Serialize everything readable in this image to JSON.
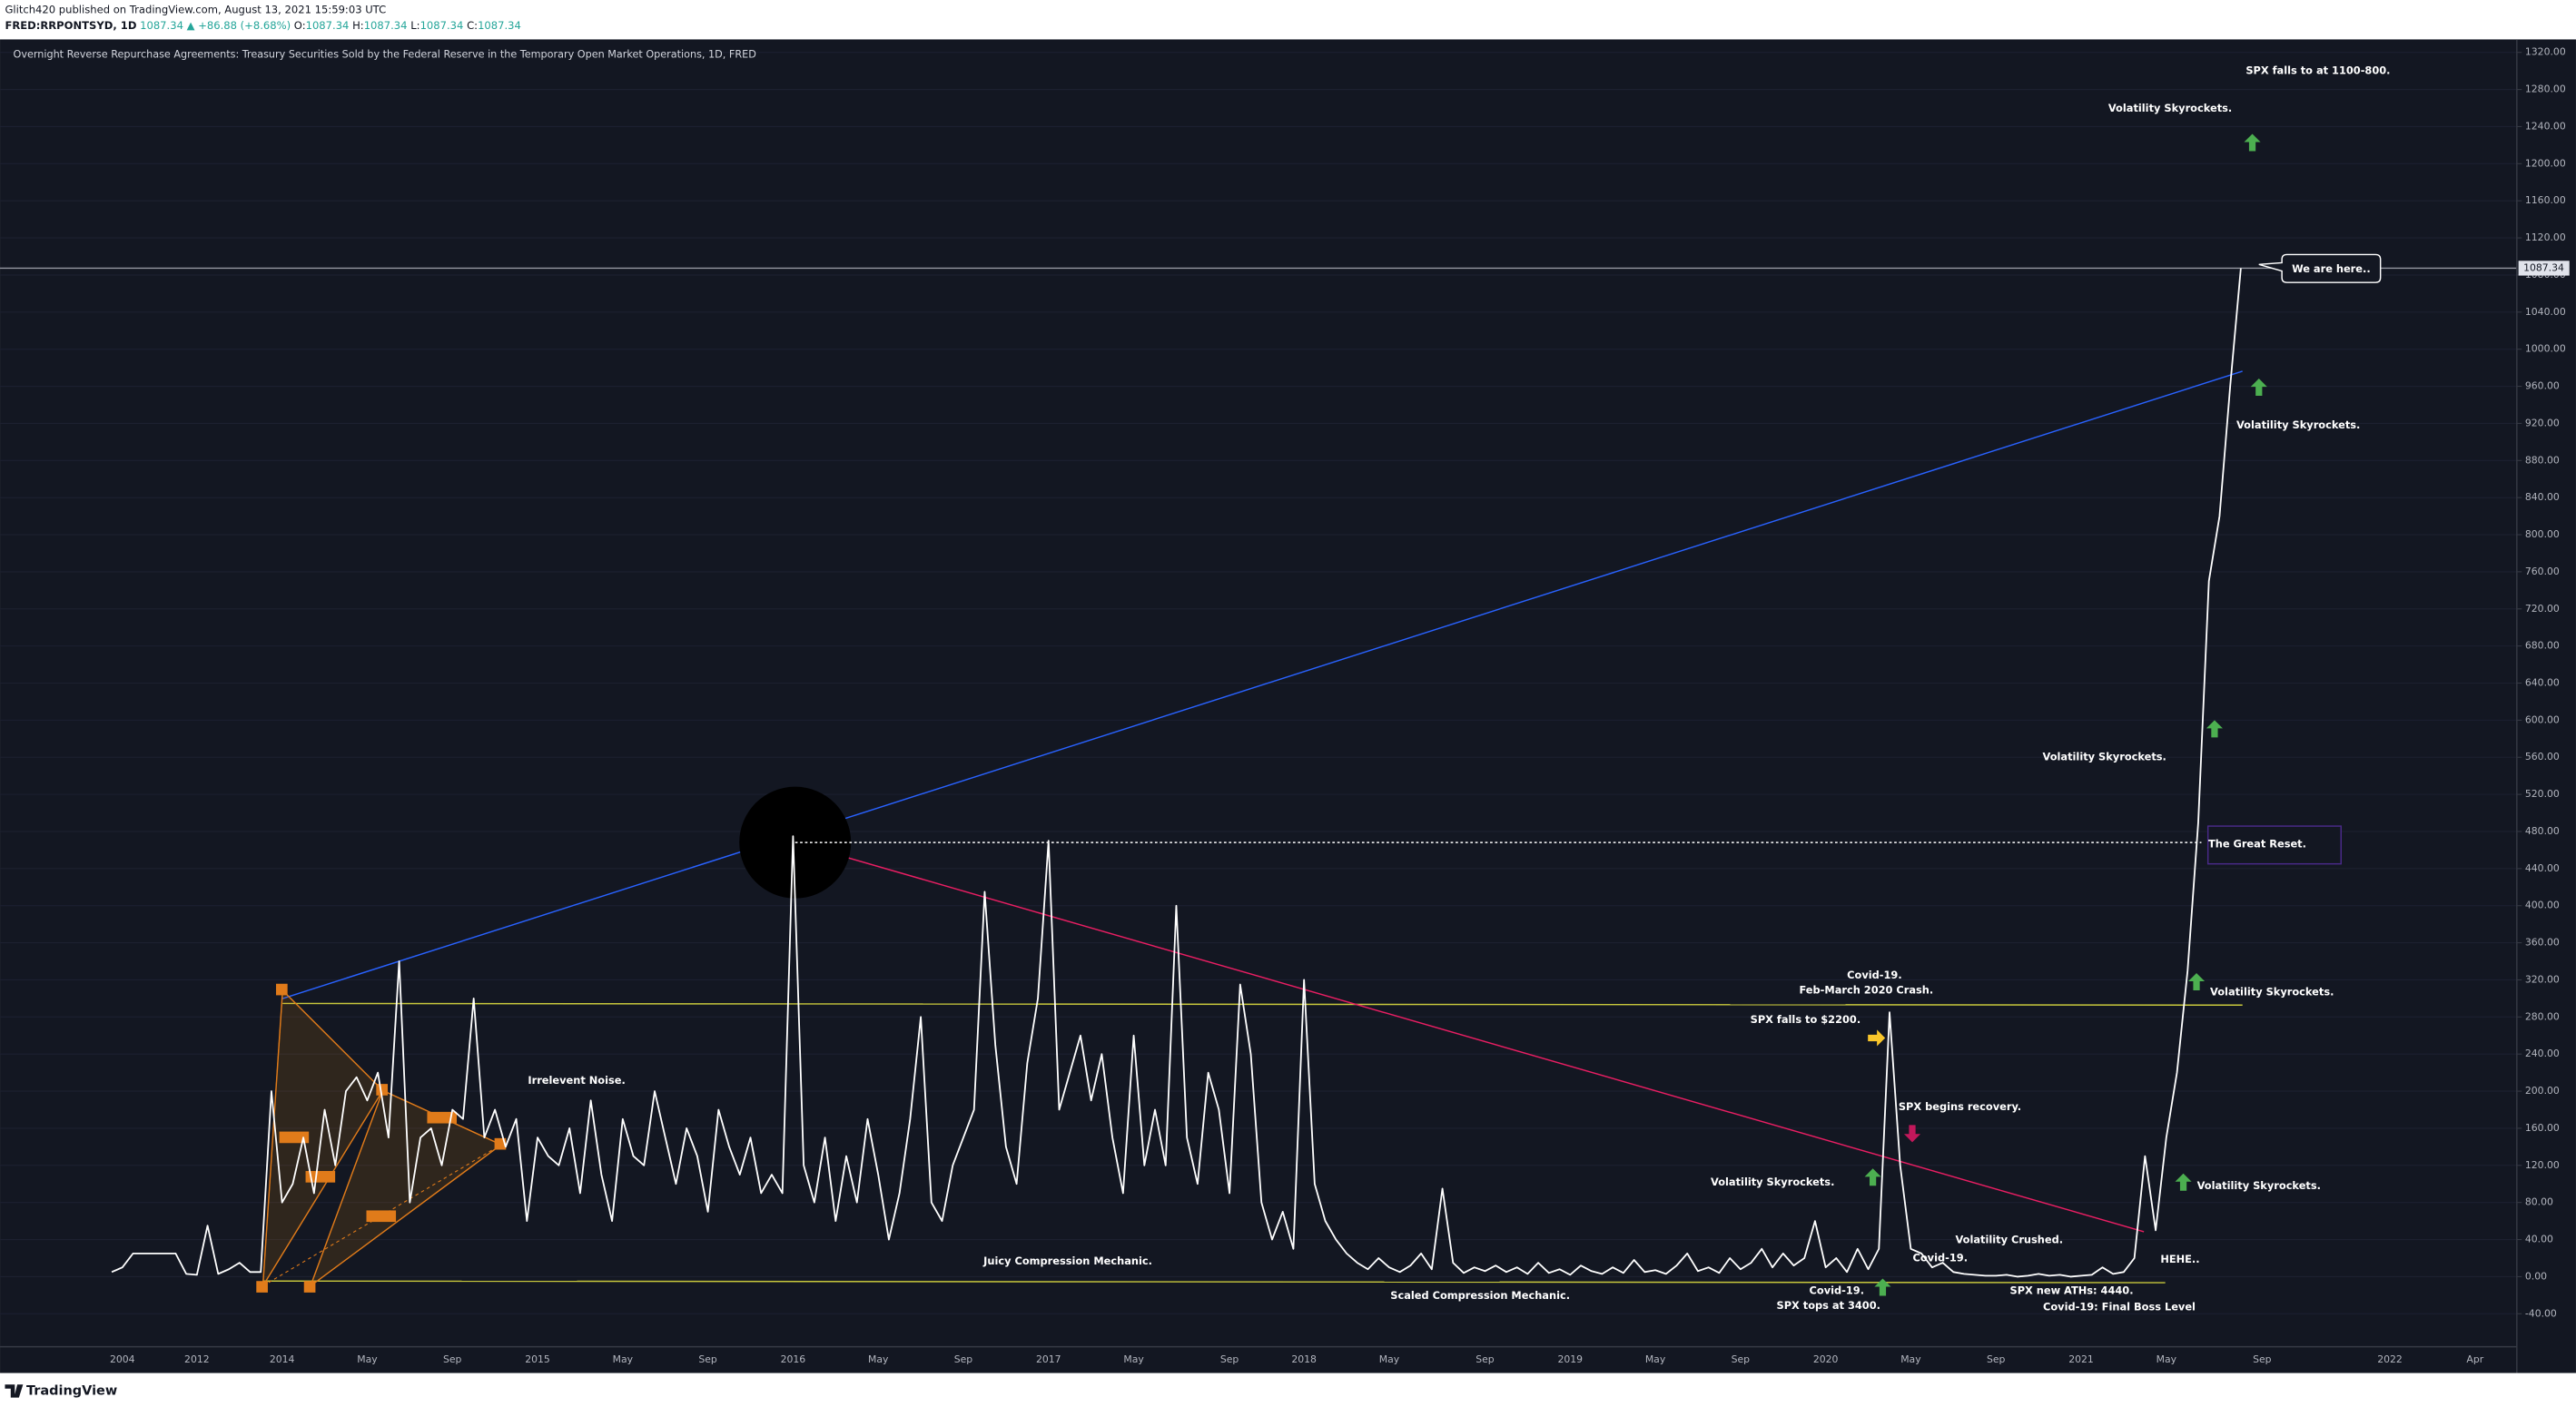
{
  "header": {
    "author_line": "Glitch420 published on TradingView.com, August 13, 2021 15:59:03 UTC",
    "symbol": "FRED:RRPONTSYD, 1D",
    "last": "1087.34",
    "change": "▲ +86.88 (+8.68%)",
    "ohlc": [
      {
        "key": "O:",
        "value": "1087.34"
      },
      {
        "key": "H:",
        "value": "1087.34"
      },
      {
        "key": "L:",
        "value": "1087.34"
      },
      {
        "key": "C:",
        "value": "1087.34"
      }
    ]
  },
  "footer": {
    "logo": "TradingView"
  },
  "chart_data": {
    "type": "line",
    "title": "Overnight Reverse Repurchase Agreements: Treasury Securities Sold by the Federal Reserve in the Temporary Open Market Operations, 1D, FRED",
    "color": "#ffffff",
    "grid": true,
    "categories": [
      null,
      "2004",
      null,
      null,
      null,
      null,
      null,
      null,
      "2012",
      null,
      null,
      null,
      null,
      null,
      null,
      null,
      "2014",
      null,
      null,
      null,
      null,
      null,
      null,
      null,
      "May",
      null,
      null,
      null,
      null,
      null,
      null,
      null,
      "Sep",
      null,
      null,
      null,
      null,
      null,
      null,
      null,
      "2015",
      null,
      null,
      null,
      null,
      null,
      null,
      null,
      "May",
      null,
      null,
      null,
      null,
      null,
      null,
      null,
      "Sep",
      null,
      null,
      null,
      null,
      null,
      null,
      null,
      "2016",
      null,
      null,
      null,
      null,
      null,
      null,
      null,
      "May",
      null,
      null,
      null,
      null,
      null,
      null,
      null,
      "Sep",
      null,
      null,
      null,
      null,
      null,
      null,
      null,
      "2017",
      null,
      null,
      null,
      null,
      null,
      null,
      null,
      "May",
      null,
      null,
      null,
      null,
      null,
      null,
      null,
      null,
      "Sep",
      null,
      null,
      null,
      null,
      null,
      null,
      "2018",
      null,
      null,
      null,
      null,
      null,
      null,
      null,
      "May",
      null,
      null,
      null,
      null,
      null,
      null,
      null,
      null,
      "Sep",
      null,
      null,
      null,
      null,
      null,
      null,
      null,
      "2019",
      null,
      null,
      null,
      null,
      null,
      null,
      null,
      "May",
      null,
      null,
      null,
      null,
      null,
      null,
      null,
      "Sep",
      null,
      null,
      null,
      null,
      null,
      null,
      null,
      "2020",
      null,
      null,
      null,
      null,
      null,
      null,
      null,
      "May",
      null,
      null,
      null,
      null,
      null,
      null,
      null,
      "Sep",
      null,
      null,
      null,
      null,
      null,
      null,
      null,
      "2021",
      null,
      null,
      null,
      null,
      null,
      null,
      null,
      "May",
      null,
      null,
      null,
      null,
      null,
      null,
      null,
      null,
      "Sep",
      null,
      null,
      null,
      null,
      null,
      null,
      null,
      null,
      null,
      null,
      null,
      "2022",
      null,
      null,
      null,
      null,
      null,
      null,
      null,
      "Apr",
      null,
      null,
      null
    ],
    "values": [
      5,
      10,
      25,
      25,
      25,
      25,
      25,
      3,
      2,
      55,
      3,
      8,
      15,
      5,
      5,
      200,
      80,
      100,
      150,
      90,
      180,
      120,
      200,
      215,
      190,
      220,
      150,
      340,
      80,
      150,
      160,
      120,
      180,
      170,
      300,
      150,
      180,
      140,
      170,
      60,
      150,
      130,
      120,
      160,
      90,
      190,
      110,
      60,
      170,
      130,
      120,
      200,
      150,
      100,
      160,
      130,
      70,
      180,
      140,
      110,
      150,
      90,
      110,
      90,
      475,
      120,
      80,
      150,
      60,
      130,
      80,
      170,
      110,
      40,
      90,
      170,
      280,
      80,
      60,
      120,
      150,
      180,
      415,
      250,
      140,
      100,
      230,
      300,
      470,
      180,
      220,
      260,
      190,
      240,
      150,
      90,
      260,
      120,
      180,
      120,
      400,
      150,
      100,
      220,
      180,
      90,
      315,
      240,
      80,
      40,
      70,
      30,
      320,
      100,
      60,
      40,
      25,
      15,
      8,
      20,
      10,
      5,
      12,
      25,
      8,
      95,
      15,
      4,
      10,
      6,
      12,
      5,
      10,
      3,
      15,
      4,
      8,
      2,
      12,
      6,
      3,
      10,
      4,
      18,
      5,
      7,
      3,
      12,
      25,
      6,
      10,
      4,
      20,
      8,
      15,
      30,
      10,
      25,
      12,
      20,
      60,
      10,
      20,
      5,
      30,
      8,
      30,
      285,
      120,
      30,
      25,
      10,
      15,
      5,
      3,
      2,
      1,
      1,
      2,
      0,
      1,
      3,
      1,
      2,
      0,
      1,
      2,
      10,
      3,
      5,
      20,
      130,
      50,
      150,
      220,
      330,
      490,
      750,
      820,
      960,
      1087.34,
      null,
      null,
      null,
      null,
      null,
      null,
      null,
      null,
      null,
      null,
      null,
      null,
      null,
      null,
      null,
      null,
      null,
      null,
      null,
      null,
      null,
      null,
      null,
      null,
      null
    ],
    "ylim": [
      -72,
      1334
    ],
    "yticks": [
      {
        "value": 1320,
        "label": "1320.00"
      },
      {
        "value": 1280,
        "label": "1280.00"
      },
      {
        "value": 1240,
        "label": "1240.00"
      },
      {
        "value": 1200,
        "label": "1200.00"
      },
      {
        "value": 1160,
        "label": "1160.00"
      },
      {
        "value": 1120,
        "label": "1120.00"
      },
      {
        "value": 1080,
        "label": "1080.00"
      },
      {
        "value": 1040,
        "label": "1040.00"
      },
      {
        "value": 1000,
        "label": "1000.00"
      },
      {
        "value": 960,
        "label": "960.00"
      },
      {
        "value": 920,
        "label": "920.00"
      },
      {
        "value": 880,
        "label": "880.00"
      },
      {
        "value": 840,
        "label": "840.00"
      },
      {
        "value": 800,
        "label": "800.00"
      },
      {
        "value": 760,
        "label": "760.00"
      },
      {
        "value": 720,
        "label": "720.00"
      },
      {
        "value": 680,
        "label": "680.00"
      },
      {
        "value": 640,
        "label": "640.00"
      },
      {
        "value": 600,
        "label": "600.00"
      },
      {
        "value": 560,
        "label": "560.00"
      },
      {
        "value": 520,
        "label": "520.00"
      },
      {
        "value": 480,
        "label": "480.00"
      },
      {
        "value": 440,
        "label": "440.00"
      },
      {
        "value": 400,
        "label": "400.00"
      },
      {
        "value": 360,
        "label": "360.00"
      },
      {
        "value": 320,
        "label": "320.00"
      },
      {
        "value": 280,
        "label": "280.00"
      },
      {
        "value": 240,
        "label": "240.00"
      },
      {
        "value": 200,
        "label": "200.00"
      },
      {
        "value": 160,
        "label": "160.00"
      },
      {
        "value": 120,
        "label": "120.00"
      },
      {
        "value": 80,
        "label": "80.00"
      },
      {
        "value": 40,
        "label": "40.00"
      },
      {
        "value": 0,
        "label": "0.00"
      },
      {
        "value": -40,
        "label": "-40.00"
      }
    ],
    "annotations": [
      "SPX falls to at 1100-800.",
      "Volatility Skyrockets.",
      "We are here..",
      "Volatility Skyrockets.",
      "Volatility Skyrockets.",
      "The Great Reset.",
      "Volatility Skyrockets.",
      "Covid-19.",
      "Feb-March 2020 Crash.",
      "SPX falls to $2200.",
      "SPX begins recovery.",
      "Irrelevent Noise.",
      "Volatility Skyrockets.",
      "Volatility Skyrockets.",
      "Volatility Crushed.",
      "Covid-19.",
      "HEHE..",
      "Juicy Compression Mechanic.",
      "Scaled Compression Mechanic.",
      "Covid-19.",
      "SPX tops at 3400.",
      "SPX new ATHs: 4440.",
      "Covid-19:  Final Boss Level"
    ]
  }
}
